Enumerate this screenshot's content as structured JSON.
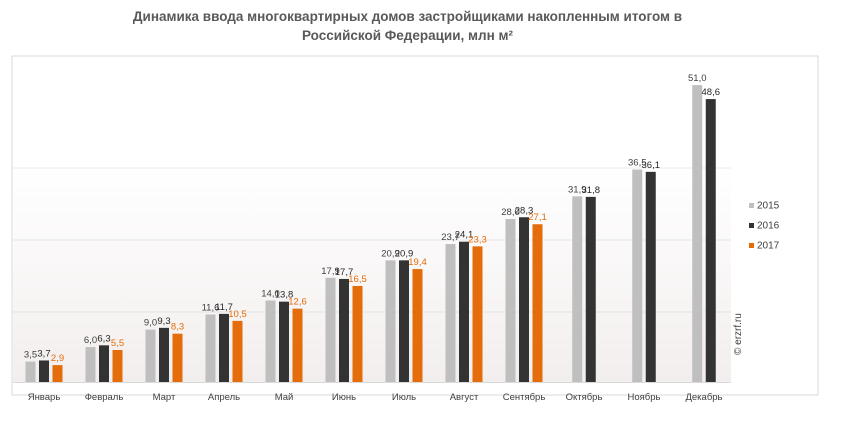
{
  "chart_data": {
    "type": "bar",
    "title": "Динамика ввода многоквартирных домов застройщиками накопленным итогом в Российской Федерации, млн м²",
    "title_lines": [
      "Динамика ввода многоквартирных домов застройщиками накопленным итогом в",
      "Российской Федерации, млн м²"
    ],
    "xlabel": "",
    "ylabel": "",
    "ylim": [
      0,
      56
    ],
    "grid": false,
    "legend_position": "right",
    "categories": [
      "Январь",
      "Февраль",
      "Март",
      "Апрель",
      "Май",
      "Июнь",
      "Июль",
      "Август",
      "Сентябрь",
      "Октябрь",
      "Ноябрь",
      "Декабрь"
    ],
    "series": [
      {
        "name": "2015",
        "color": "#bfbfbf",
        "labelColor": "#404040",
        "values": [
          3.5,
          6.0,
          9.0,
          11.6,
          14.0,
          17.9,
          20.9,
          23.7,
          28.0,
          31.9,
          36.5,
          51.0
        ],
        "labels": [
          "3,5",
          "6,0",
          "9,0",
          "11,6",
          "14,0",
          "17,9",
          "20,9",
          "23,7",
          "28,0",
          "31,9",
          "36,5",
          "51,0"
        ]
      },
      {
        "name": "2016",
        "color": "#333333",
        "labelColor": "#262626",
        "values": [
          3.7,
          6.3,
          9.3,
          11.7,
          13.8,
          17.7,
          20.9,
          24.1,
          28.3,
          31.8,
          36.1,
          48.6
        ],
        "labels": [
          "3,7",
          "6,3",
          "9,3",
          "11,7",
          "13,8",
          "17,7",
          "20,9",
          "24,1",
          "28,3",
          "31,8",
          "36,1",
          "48,6"
        ]
      },
      {
        "name": "2017",
        "color": "#e46c0a",
        "labelColor": "#e46c0a",
        "values": [
          2.9,
          5.5,
          8.3,
          10.5,
          12.6,
          16.5,
          19.4,
          23.3,
          27.1,
          null,
          null,
          null
        ],
        "labels": [
          "2,9",
          "5,5",
          "8,3",
          "10,5",
          "12,6",
          "16,5",
          "19,4",
          "23,3",
          "27,1",
          null,
          null,
          null
        ]
      }
    ]
  },
  "source": "© erzrf.ru"
}
